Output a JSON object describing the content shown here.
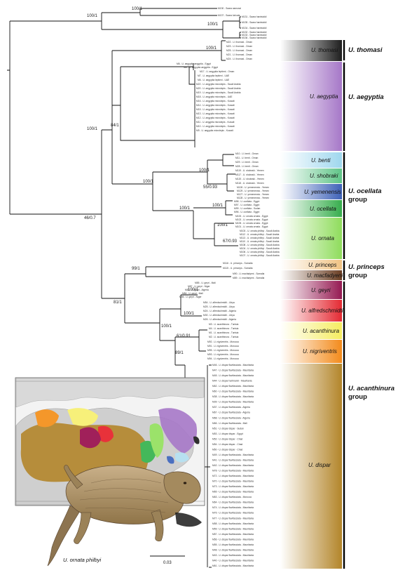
{
  "support_values": {
    "s_root_top": "100/1",
    "s_inner_top": "100/1",
    "s_hw": "100/1",
    "s_thom": "100/1",
    "s_spiny": "100/1",
    "s_84": "84/1",
    "s_46": "46/0.7",
    "s_oc_grp": "100/1",
    "s_benti": "100/1",
    "s_55": "55/0.93",
    "s_oce": "100/1",
    "s_oce2": "100/1",
    "s_orn": "100/1",
    "s_67": "67/0.93",
    "s_99": "99/1",
    "s_81": "81/1",
    "s_gey": "100/1",
    "s_alf": "100/1",
    "s_aca": "100/1",
    "s_61": "61/0.91",
    "s_89": "89/1"
  },
  "clades": {
    "thomasi": "U. thomasi",
    "aegyptia": "U. aegyptia",
    "benti": "U. benti",
    "shobraki": "U. shobraki",
    "yemenensis": "U. yemenensis",
    "ocellata": "U. ocellata",
    "ornata": "U. ornata",
    "princeps": "U. princeps",
    "macfadyeni": "U. macfadyeni",
    "geyri": "U. geyri",
    "alfredschmidti": "U. alfredschmidti",
    "acanthinura": "U. acanthinura",
    "nigriventris": "U. nigriventris",
    "dispar": "U. dispar"
  },
  "groups": {
    "thomasi": "U. thomasi",
    "aegyptia": "U. aegyptia",
    "ocellata_name": "U. ocellata",
    "ocellata_word": "group",
    "princeps_name": "U. princeps",
    "princeps_word": "group",
    "acanthinura_name": "U. acanthinura",
    "acanthinura_word": "group"
  },
  "tips": {
    "t_sm1": "M130 - Saara asmussi",
    "t_sm2": "M137 - Saara loricata",
    "t_h1": "M131 - Saara hardwickii",
    "t_h2": "M135 - Saara hardwickii",
    "t_h3": "M134 - Saara hardwickii",
    "t_h4": "M132 - Saara hardwickii",
    "t_h5": "M133 - Saara hardwickii",
    "t_h6": "M136 - Saara hardwickii",
    "t_th1": "M22 - U. thomasi - Oman",
    "t_th2": "M23 - U. thomasi - Oman",
    "t_th3": "M25 - U. thomasi - Oman",
    "t_th4": "M21 - U. thomasi - Oman",
    "t_th5": "M24 - U. thomasi - Oman",
    "t_ae1": "M6 - U. aegyptia aegyptia - Egypt",
    "t_ae2": "M8 - U. aegyptia aegyptia - Egypt",
    "t_ae3": "M17 - U. aegyptia leptieni - Oman",
    "t_ae4": "M7 - U. aegyptia leptieni - UAE",
    "t_ae5": "M6 - U. aegyptia leptieni - UAE",
    "t_ae6": "M22 - U. aegyptia microlepis - Saudi Arabia",
    "t_ae7": "M20 - U. aegyptia microlepis - Saudi Arabia",
    "t_ae8": "M19 - U. aegyptia microlepis - Saudi Arabia",
    "t_ae9": "M18 - U. aegyptia microlepis - UAE",
    "t_ae10": "M16 - U. aegyptia microlepis - Kuwait",
    "t_ae11": "M14 - U. aegyptia microlepis - Kuwait",
    "t_ae12": "M15 - U. aegyptia microlepis - Kuwait",
    "t_ae13": "M13 - U. aegyptia microlepis - Kuwait",
    "t_ae14": "M12 - U. aegyptia microlepis - Kuwait",
    "t_ae15": "M11 - U. aegyptia microlepis - Kuwait",
    "t_ae16": "M10 - U. aegyptia microlepis - Kuwait",
    "t_ae17": "M9 - U. aegyptia microlepis - Kuwait",
    "t_be1": "M10 - U. benti - Oman",
    "t_be2": "M11 - U. benti - Oman",
    "t_be3": "M29 - U. benti - Oman",
    "t_be4": "M28 - U. benti - Oman",
    "t_sh1": "M119 - U. shobraki - Yemen",
    "t_sh2": "M117 - U. shobraki - Yemen",
    "t_sh3": "M120 - U. shobraki - Yemen",
    "t_sh4": "M118 - U. shobraki - Yemen",
    "t_ye1": "M126 - U. yemenensis - Yemen",
    "t_ye2": "M129 - U. yemenensis - Yemen",
    "t_ye3": "M127 - U. yemenensis - Yemen",
    "t_ye4": "M128 - U. yemenensis - Yemen",
    "t_oc1": "M98 - U. ocellata - Egypt",
    "t_oc2": "M97 - U. ocellata - Egypt",
    "t_oc3": "M99 - U. ocellata - Sudan",
    "t_oc4": "M96 - U. ocellata - Egypt",
    "t_or1": "M100 - U. ornata ornata - Egypt",
    "t_or2": "M102 - U. ornata ornata - Egypt",
    "t_or3": "M105 - U. ornata ornata - Egypt",
    "t_or4": "M101 - U. ornata ornata - Egypt",
    "t_or5": "M103 - U. ornata philbyi - Saudi Arabia",
    "t_or6": "M112 - U. ornata philbyi - Saudi Arabia",
    "t_or7": "M113 - U. ornata philbyi - Saudi Arabia",
    "t_or8": "M110 - U. ornata philbyi - Saudi Arabia",
    "t_or9": "M108 - U. ornata philbyi - Saudi Arabia",
    "t_or10": "M104 - U. ornata philbyi - Saudi Arabia",
    "t_or11": "M106 - U. ornata philbyi - Saudi Arabia",
    "t_or12": "M107 - U. ornata philbyi - Saudi Arabia",
    "t_pr1": "M116 - U. princeps - Somalia",
    "t_pr2": "M115 - U. princeps - Somalia",
    "t_ma1": "M90 - U. macfadyeni - Somalia",
    "t_ma2": "M89 - U. macfadyeni - Somalia",
    "t_ge1": "M85 - U. geyri - Mali",
    "t_ge2": "M87 - U. geyri - Niger",
    "t_ge3": "M83 - U. geyri - Algeria",
    "t_ge4": "M84 - U. geyri - Mali",
    "t_ge5": "M86 - U. geyri - Niger",
    "t_al1": "M54 - U. alfredschmidti - Libya",
    "t_al2": "M25 - U. alfredschmidti - Libya",
    "t_al3": "M24 - U. alfredschmidti - Algeria",
    "t_al4": "M30 - U. alfredschmidti - Libya",
    "t_al5": "M26 - U. alfredschmidti - Algeria",
    "t_ac1": "M3 - U. acanthinura - Tunisia",
    "t_ac2": "M4 - U. acanthinura - Tunisia",
    "t_ac3": "M1 - U. acanthinura - Tunisia",
    "t_ac4": "M2 - U. acanthinura - Tunisia",
    "t_ni1": "M92 - U. nigriventris - Morocco",
    "t_ni2": "M91 - U. nigriventris - Morocco",
    "t_ni3": "M95 - U. nigriventris - Morocco",
    "t_ni4": "M93 - U. nigriventris - Morocco",
    "t_ni5": "M94 - U. nigriventris - Morocco",
    "t_di1": "M46 - U. dispar flavifasciata - Mauritania",
    "t_di2": "M47 - U. dispar flavifasciata - Mauritania",
    "t_di3": "M45 - U. dispar flavifasciata - Mauritania",
    "t_di4": "M44 - U. dispar hartmanni - Mauritania",
    "t_di5": "M62 - U. dispar flavifasciata - Mauritania",
    "t_di6": "M60 - U. dispar flavifasciata - Mauritania",
    "t_di7": "M38 - U. dispar flavifasciata - Mauritania",
    "t_di8": "M39 - U. dispar flavifasciata - Mauritania",
    "t_di9": "M37 - U. dispar flavifasciata - Algeria",
    "t_di10": "M67 - U. dispar flavifasciata - Algeria",
    "t_di11": "M68 - U. dispar flavifasciata - Algeria",
    "t_di12": "M66 - U. dispar flavifasciata - Mali",
    "t_di13": "M51 - U. dispar dispar - Sudan",
    "t_di14": "M53 - U. dispar dispar - Egypt",
    "t_di15": "M52 - U. dispar dispar - Chad",
    "t_di16": "M54 - U. dispar dispar - Chad",
    "t_di17": "M50 - U. dispar dispar - Chad",
    "t_di18": "M49 - U. dispar flavifasciata - Mauritania",
    "t_di19": "M41 - U. dispar flavifasciata - Mauritania",
    "t_di20": "M42 - U. dispar flavifasciata - Mauritania",
    "t_di21": "M78 - U. dispar flavifasciata - Mauritania",
    "t_di22": "M72 - U. dispar flavifasciata - Mauritania",
    "t_di23": "M70 - U. dispar flavifasciata - Mauritania",
    "t_di24": "M73 - U. dispar flavifasciata - Mauritania",
    "t_di25": "M65 - U. dispar flavifasciata - Mauritania",
    "t_di26": "M63 - U. dispar flavifasciata - Morocco",
    "t_di27": "M64 - U. dispar flavifasciata - Mauritania",
    "t_di28": "M74 - U. dispar flavifasciata - Mauritania",
    "t_di29": "M76 - U. dispar flavifasciata - Mauritania",
    "t_di30": "M77 - U. dispar flavifasciata - Mauritania",
    "t_di31": "M58 - U. dispar flavifasciata - Mauritania",
    "t_di32": "M59 - U. dispar flavifasciata - Mauritania",
    "t_di33": "M57 - U. dispar flavifasciata - Mauritania",
    "t_di34": "M56 - U. dispar flavifasciata - Mauritania",
    "t_di35": "M55 - U. dispar flavifasciata - Mauritania",
    "t_di36": "M48 - U. dispar flavifasciata - Mauritania",
    "t_di37": "M43 - U. dispar flavifasciata - Mauritania",
    "t_di38": "M40 - U. dispar flavifasciata - Mauritania",
    "t_di39": "M61 - U. dispar flavifasciata - Mauritania"
  },
  "scale_label": "0.03",
  "caption": "U. ornata philbyi",
  "colors": {
    "thomasi": "#2f2f2f",
    "aegyptia": "#a678c8",
    "benti": "#b7e0f0",
    "shobraki": "#7fcf9a",
    "yemenensis": "#4a6fc0",
    "ocellata": "#44b85a",
    "ornata": "#9be26a",
    "princeps": "#f3cf98",
    "macfadyeni": "#7a4a2a",
    "geyri": "#a0205a",
    "alfredschmidti": "#e8323a",
    "acanthinura": "#f7f07a",
    "nigriventris": "#f4972a",
    "dispar": "#b98c2a"
  }
}
